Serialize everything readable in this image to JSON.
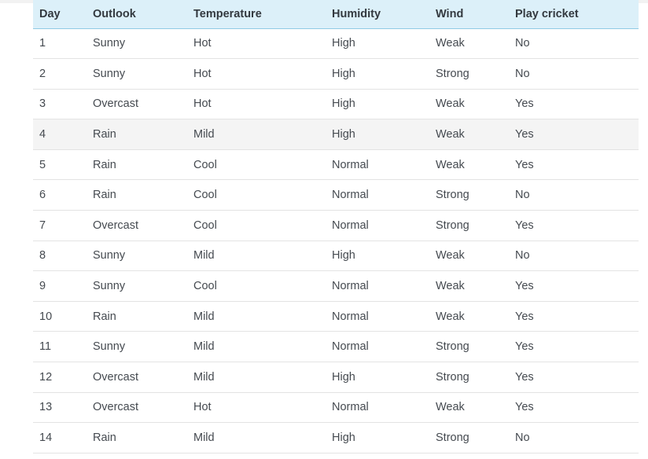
{
  "table": {
    "headers": [
      "Day",
      "Outlook",
      "Temperature",
      "Humidity",
      "Wind",
      "Play cricket"
    ],
    "rows": [
      [
        "1",
        "Sunny",
        "Hot",
        "High",
        "Weak",
        "No"
      ],
      [
        "2",
        "Sunny",
        "Hot",
        "High",
        "Strong",
        "No"
      ],
      [
        "3",
        "Overcast",
        "Hot",
        "High",
        "Weak",
        "Yes"
      ],
      [
        "4",
        "Rain",
        "Mild",
        "High",
        "Weak",
        "Yes"
      ],
      [
        "5",
        "Rain",
        "Cool",
        "Normal",
        "Weak",
        "Yes"
      ],
      [
        "6",
        "Rain",
        "Cool",
        "Normal",
        "Strong",
        "No"
      ],
      [
        "7",
        "Overcast",
        "Cool",
        "Normal",
        "Strong",
        "Yes"
      ],
      [
        "8",
        "Sunny",
        "Mild",
        "High",
        "Weak",
        "No"
      ],
      [
        "9",
        "Sunny",
        "Cool",
        "Normal",
        "Weak",
        "Yes"
      ],
      [
        "10",
        "Rain",
        "Mild",
        "Normal",
        "Weak",
        "Yes"
      ],
      [
        "11",
        "Sunny",
        "Mild",
        "Normal",
        "Strong",
        "Yes"
      ],
      [
        "12",
        "Overcast",
        "Mild",
        "High",
        "Strong",
        "Yes"
      ],
      [
        "13",
        "Overcast",
        "Hot",
        "Normal",
        "Weak",
        "Yes"
      ],
      [
        "14",
        "Rain",
        "Mild",
        "High",
        "Strong",
        "No"
      ]
    ]
  },
  "colors": {
    "header_background": "#dcf0f9",
    "header_border": "#8fcbe5",
    "highlighted_row_background": "#f4f4f4",
    "row_divider": "#e3e3e3"
  }
}
